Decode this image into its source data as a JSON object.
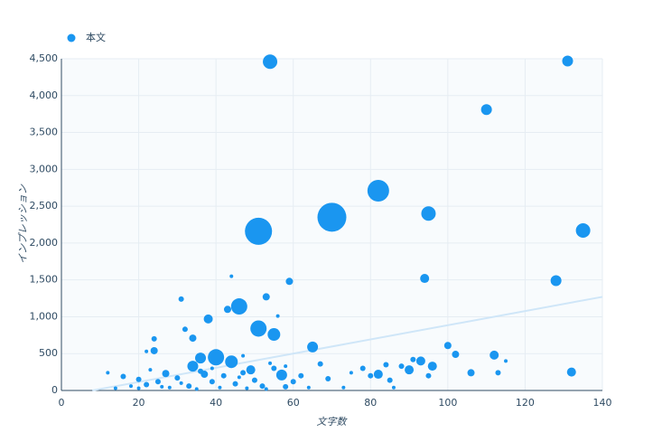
{
  "chart_data": {
    "type": "scatter",
    "x_label": "文字数",
    "y_label": "インプレッション",
    "xlim": [
      0,
      140
    ],
    "xticks": [
      0,
      20,
      40,
      60,
      80,
      100,
      120,
      140
    ],
    "ylim": [
      0,
      4500
    ],
    "yticks": [
      0,
      500,
      {
        "value": 1000,
        "label": "1,000"
      },
      {
        "value": 1500,
        "label": "1,500"
      },
      {
        "value": 2000,
        "label": "2,000"
      },
      {
        "value": 2500,
        "label": "2,500"
      },
      {
        "value": 3000,
        "label": "3,000"
      },
      {
        "value": 3500,
        "label": "3,500"
      },
      {
        "value": 4000,
        "label": "4,000"
      },
      {
        "value": 4500,
        "label": "4,500"
      }
    ],
    "grid": true,
    "legend": "top-left",
    "trend": {
      "color": "#cfe6f8",
      "x": [
        8,
        140
      ],
      "values": [
        0,
        1270
      ]
    },
    "series": [
      {
        "name": "本文",
        "color": "#1a96f0",
        "x": [
          54,
          131,
          110,
          82,
          70,
          95,
          51,
          135,
          128,
          94,
          59,
          53,
          31,
          44,
          46,
          43,
          51,
          55,
          38,
          56,
          24,
          34,
          32,
          65,
          24,
          40,
          44,
          36,
          34,
          49,
          57,
          93,
          96,
          90,
          82,
          100,
          102,
          112,
          113,
          106,
          132,
          115,
          27,
          16,
          12,
          20,
          22,
          25,
          30,
          33,
          37,
          39,
          42,
          45,
          47,
          50,
          52,
          55,
          58,
          60,
          62,
          67,
          69,
          75,
          78,
          80,
          84,
          85,
          88,
          91,
          95,
          18,
          20,
          28,
          35,
          41,
          48,
          53,
          64,
          73,
          86,
          14,
          26,
          31,
          46,
          54,
          39,
          23,
          36,
          47,
          58,
          22
        ],
        "values": [
          4460,
          4470,
          3810,
          2710,
          2350,
          2400,
          2160,
          2170,
          1490,
          1520,
          1480,
          1270,
          1240,
          1550,
          1140,
          1100,
          840,
          760,
          970,
          1010,
          700,
          710,
          830,
          590,
          540,
          450,
          390,
          440,
          330,
          280,
          210,
          400,
          330,
          280,
          220,
          610,
          490,
          480,
          240,
          240,
          250,
          400,
          230,
          190,
          240,
          150,
          80,
          120,
          170,
          60,
          220,
          120,
          200,
          90,
          240,
          140,
          60,
          300,
          50,
          120,
          200,
          360,
          160,
          240,
          300,
          200,
          350,
          140,
          330,
          420,
          200,
          60,
          30,
          40,
          20,
          40,
          30,
          20,
          40,
          40,
          40,
          30,
          50,
          100,
          180,
          370,
          300,
          280,
          260,
          470,
          330,
          530
        ],
        "sizes": [
          8,
          6,
          6,
          12,
          16,
          8,
          15,
          8,
          6,
          5,
          4,
          4,
          3,
          2,
          9,
          4,
          9,
          7,
          5,
          2,
          3,
          4,
          3,
          6,
          4,
          9,
          7,
          6,
          6,
          5,
          6,
          5,
          5,
          5,
          5,
          4,
          4,
          5,
          3,
          4,
          5,
          2,
          4,
          3,
          2,
          3,
          3,
          3,
          3,
          3,
          4,
          3,
          3,
          3,
          3,
          3,
          3,
          3,
          3,
          3,
          3,
          3,
          3,
          2,
          3,
          3,
          3,
          3,
          3,
          3,
          3,
          2,
          2,
          2,
          2,
          2,
          2,
          2,
          2,
          2,
          2,
          2,
          2,
          2,
          2,
          2,
          2,
          2,
          3,
          2,
          2,
          2
        ]
      }
    ]
  }
}
